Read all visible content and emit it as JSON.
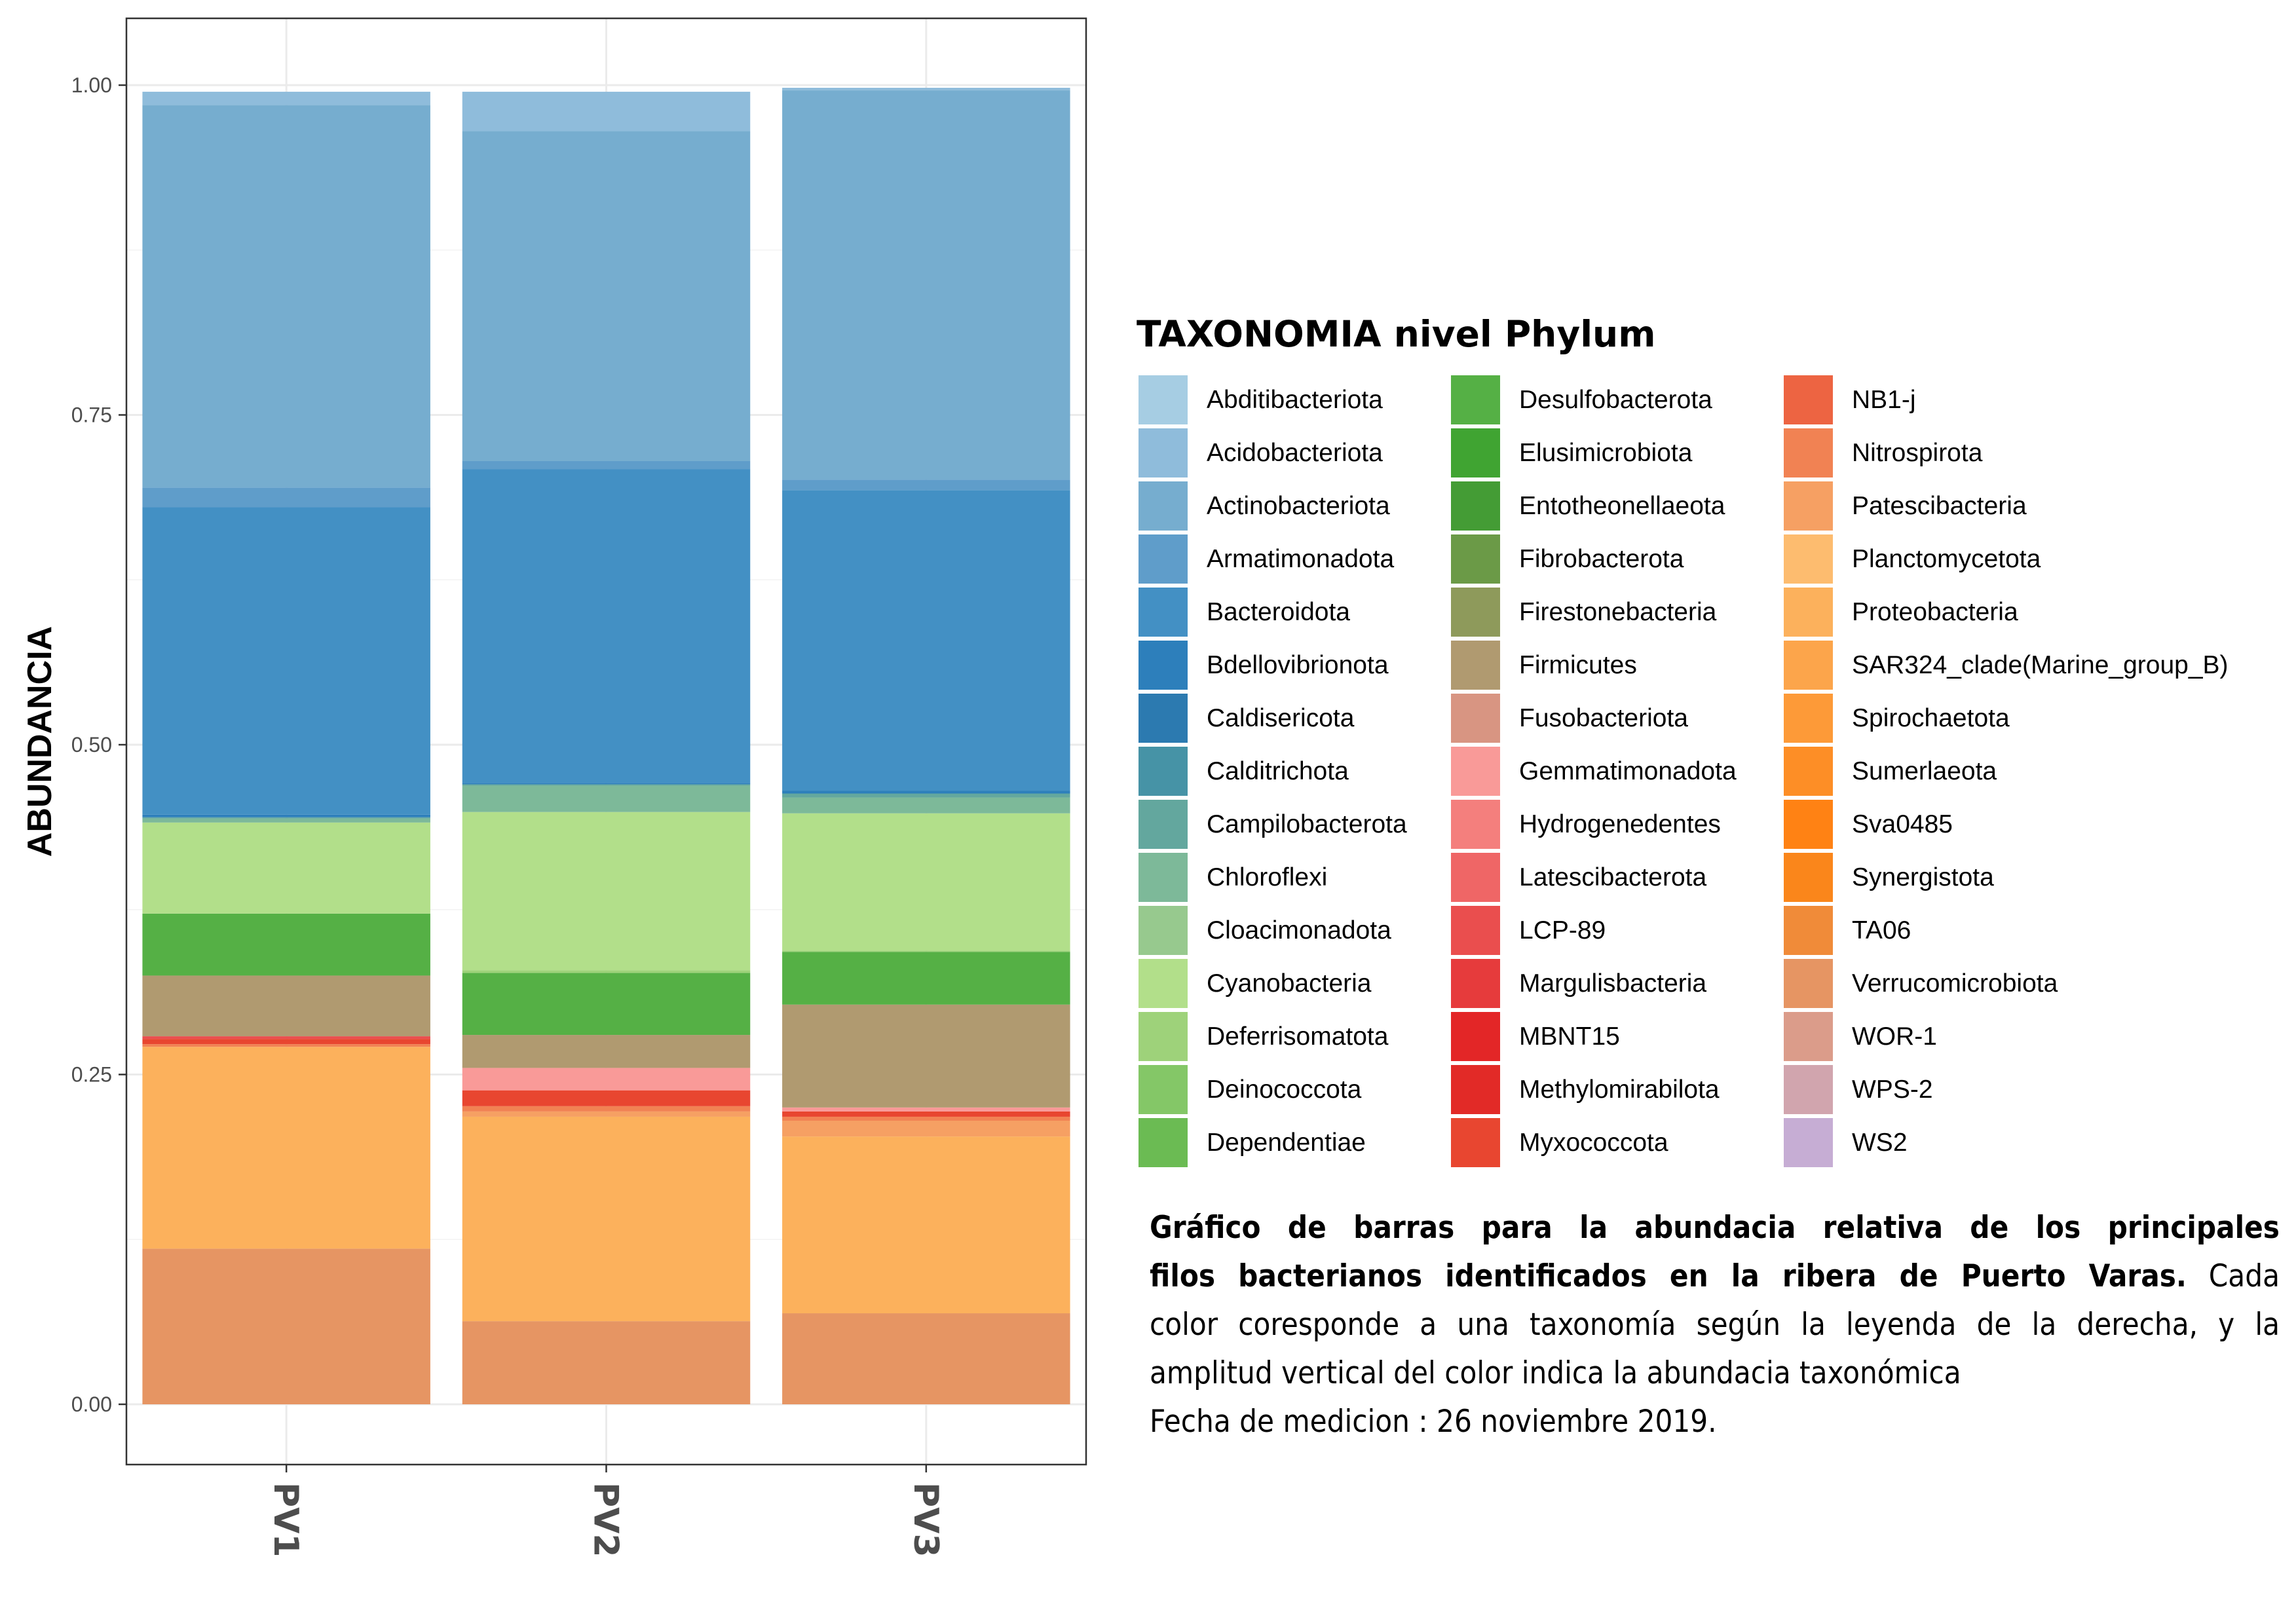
{
  "chart_data": {
    "type": "bar",
    "stacked": true,
    "categories": [
      "PV1",
      "PV2",
      "PV3"
    ],
    "ylabel": "ABUNDANCIA",
    "xlabel": "",
    "ylim": [
      0,
      1
    ],
    "yticks": [
      "0.00",
      "0.25",
      "0.50",
      "0.75",
      "1.00"
    ],
    "grid": true,
    "legend_title": "TAXONOMIA nivel Phylum",
    "legend_position": "right",
    "series": [
      {
        "name": "Abditibacteriota",
        "color": "#a6cde3",
        "values": [
          0.0,
          0.0,
          0.0
        ]
      },
      {
        "name": "Acidobacteriota",
        "color": "#8fbcdb",
        "values": [
          0.01,
          0.03,
          0.002
        ]
      },
      {
        "name": "Actinobacteriota",
        "color": "#76adcf",
        "values": [
          0.29,
          0.25,
          0.295
        ]
      },
      {
        "name": "Armatimonadota",
        "color": "#5f9dca",
        "values": [
          0.015,
          0.006,
          0.008
        ]
      },
      {
        "name": "Bacteroidota",
        "color": "#4390c4",
        "values": [
          0.233,
          0.238,
          0.228
        ]
      },
      {
        "name": "Bdellovibrionota",
        "color": "#2d7fbb",
        "values": [
          0.002,
          0.001,
          0.002
        ]
      },
      {
        "name": "Caldisericota",
        "color": "#2c7ab0",
        "values": [
          0.0,
          0.0,
          0.0
        ]
      },
      {
        "name": "Calditrichota",
        "color": "#4693a6",
        "values": [
          0.0,
          0.0,
          0.0
        ]
      },
      {
        "name": "Campilobacterota",
        "color": "#63a79e",
        "values": [
          0.001,
          0.001,
          0.003
        ]
      },
      {
        "name": "Chloroflexi",
        "color": "#7db999",
        "values": [
          0.003,
          0.02,
          0.012
        ]
      },
      {
        "name": "Cloacimonadota",
        "color": "#97c98e",
        "values": [
          0.0,
          0.0,
          0.0
        ]
      },
      {
        "name": "Cyanobacteria",
        "color": "#b2df8a",
        "values": [
          0.069,
          0.12,
          0.104
        ]
      },
      {
        "name": "Deferrisomatota",
        "color": "#9ed27a",
        "values": [
          0.0,
          0.002,
          0.001
        ]
      },
      {
        "name": "Deinococcota",
        "color": "#84c767",
        "values": [
          0.0,
          0.0,
          0.0
        ]
      },
      {
        "name": "Dependentiae",
        "color": "#6bbb53",
        "values": [
          0.0,
          0.0,
          0.0
        ]
      },
      {
        "name": "Desulfobacterota",
        "color": "#55b045",
        "values": [
          0.047,
          0.047,
          0.04
        ]
      },
      {
        "name": "Elusimicrobiota",
        "color": "#40a432",
        "values": [
          0.0,
          0.0,
          0.0
        ]
      },
      {
        "name": "Entotheonellaeota",
        "color": "#449c35",
        "values": [
          0.0,
          0.0,
          0.0
        ]
      },
      {
        "name": "Fibrobacterota",
        "color": "#6b9a47",
        "values": [
          0.0,
          0.0,
          0.0
        ]
      },
      {
        "name": "Firestonebacteria",
        "color": "#8e9a5b",
        "values": [
          0.0,
          0.0,
          0.0
        ]
      },
      {
        "name": "Firmicutes",
        "color": "#b09a70",
        "values": [
          0.046,
          0.025,
          0.078
        ]
      },
      {
        "name": "Fusobacteriota",
        "color": "#d89582",
        "values": [
          0.0,
          0.0,
          0.0
        ]
      },
      {
        "name": "Gemmatimonadota",
        "color": "#f99a98",
        "values": [
          0.0,
          0.017,
          0.003
        ]
      },
      {
        "name": "Hydrogenedentes",
        "color": "#f47f7d",
        "values": [
          0.0,
          0.0,
          0.0
        ]
      },
      {
        "name": "Latescibacterota",
        "color": "#ef6666",
        "values": [
          0.0,
          0.0,
          0.0
        ]
      },
      {
        "name": "LCP-89",
        "color": "#ea4e4e",
        "values": [
          0.002,
          0.0,
          0.0
        ]
      },
      {
        "name": "Margulisbacteria",
        "color": "#e63b3c",
        "values": [
          0.0,
          0.0,
          0.0
        ]
      },
      {
        "name": "MBNT15",
        "color": "#e32627",
        "values": [
          0.0,
          0.0,
          0.0
        ]
      },
      {
        "name": "Methylomirabilota",
        "color": "#e22a27",
        "values": [
          0.0,
          0.0,
          0.0
        ]
      },
      {
        "name": "Myxococcota",
        "color": "#e84630",
        "values": [
          0.004,
          0.012,
          0.004
        ]
      },
      {
        "name": "NB1-j",
        "color": "#ed6442",
        "values": [
          0.0,
          0.0,
          0.0
        ]
      },
      {
        "name": "Nitrospirota",
        "color": "#f18253",
        "values": [
          0.002,
          0.004,
          0.003
        ]
      },
      {
        "name": "Patescibacteria",
        "color": "#f6a063",
        "values": [
          0.0,
          0.004,
          0.012
        ]
      },
      {
        "name": "Planctomycetota",
        "color": "#fdbc6f",
        "values": [
          0.0,
          0.0,
          0.0
        ]
      },
      {
        "name": "Proteobacteria",
        "color": "#fcb15c",
        "values": [
          0.153,
          0.155,
          0.134
        ]
      },
      {
        "name": "SAR324_clade(Marine_group_B)",
        "color": "#fca54b",
        "values": [
          0.0,
          0.0,
          0.0
        ]
      },
      {
        "name": "Spirochaetota",
        "color": "#fd9a38",
        "values": [
          0.0,
          0.0,
          0.0
        ]
      },
      {
        "name": "Sumerlaeota",
        "color": "#fd8e26",
        "values": [
          0.0,
          0.0,
          0.0
        ]
      },
      {
        "name": "Sva0485",
        "color": "#ff8214",
        "values": [
          0.0,
          0.0,
          0.0
        ]
      },
      {
        "name": "Synergistota",
        "color": "#fa861b",
        "values": [
          0.0,
          0.0,
          0.0
        ]
      },
      {
        "name": "TA06",
        "color": "#f08b39",
        "values": [
          0.0,
          0.0,
          0.0
        ]
      },
      {
        "name": "Verrucomicrobiota",
        "color": "#e69563",
        "values": [
          0.118,
          0.063,
          0.069
        ]
      },
      {
        "name": "WOR-1",
        "color": "#db9c8a",
        "values": [
          0.0,
          0.0,
          0.0
        ]
      },
      {
        "name": "WPS-2",
        "color": "#d1a5ae",
        "values": [
          0.0,
          0.0,
          0.0
        ]
      },
      {
        "name": "WS2",
        "color": "#c6add4",
        "values": [
          0.0,
          0.0,
          0.0
        ]
      }
    ]
  },
  "caption": {
    "bold_line_1": "Gráfico de barras para la abundacia relativa de los principales",
    "bold_line_2": "filos bacterianos identificados en la ribera de Puerto Varas.",
    "normal_line_2": " Cada",
    "normal_line_3": "color coresponde a una taxonomía según la leyenda de la derecha, y la",
    "normal_line_4": "amplitud vertical del color indica la abundacia taxonómica",
    "normal_line_5": "Fecha de medicion : 26 noviembre 2019."
  }
}
